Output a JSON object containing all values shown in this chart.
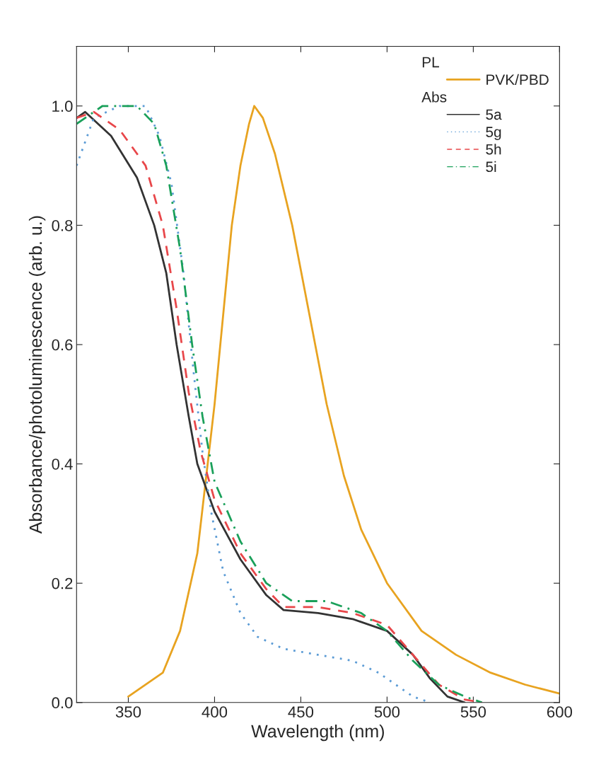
{
  "chart_data": {
    "type": "line",
    "xlabel": "Wavelength (nm)",
    "ylabel": "Absorbance/photoluminescence (arb. u.)",
    "xlim": [
      320,
      600
    ],
    "xticks": [
      350,
      400,
      450,
      500,
      550,
      600
    ],
    "ylim": [
      0,
      1.1
    ],
    "yticks": [
      {
        "value": 0,
        "label": "0.0"
      },
      {
        "value": 0.2,
        "label": "0.2"
      },
      {
        "value": 0.4,
        "label": "0.4"
      },
      {
        "value": 0.6,
        "label": "0.6"
      },
      {
        "value": 0.8,
        "label": "0.8"
      },
      {
        "value": 1.0,
        "label": "1.0"
      }
    ],
    "grid": false,
    "legend": "top right",
    "annotations": [
      "PL",
      "Abs"
    ],
    "series": [
      {
        "name": "PVK/PBD",
        "color": "#e8a320",
        "line_style": "solid",
        "x": [
          350,
          370,
          380,
          390,
          400,
          405,
          410,
          415,
          420,
          423,
          428,
          435,
          445,
          455,
          465,
          475,
          485,
          500,
          520,
          540,
          560,
          580,
          600
        ],
        "values": [
          0.01,
          0.05,
          0.12,
          0.25,
          0.5,
          0.65,
          0.8,
          0.9,
          0.97,
          1.0,
          0.98,
          0.92,
          0.8,
          0.65,
          0.5,
          0.38,
          0.29,
          0.2,
          0.12,
          0.08,
          0.05,
          0.03,
          0.015
        ]
      },
      {
        "name": "5a",
        "color": "#333333",
        "line_style": "solid",
        "x": [
          320,
          325,
          340,
          355,
          365,
          372,
          378,
          385,
          390,
          400,
          415,
          430,
          440,
          460,
          480,
          500,
          515,
          525,
          535,
          545
        ],
        "values": [
          0.98,
          0.99,
          0.95,
          0.88,
          0.8,
          0.72,
          0.6,
          0.48,
          0.4,
          0.32,
          0.24,
          0.18,
          0.155,
          0.15,
          0.14,
          0.12,
          0.08,
          0.04,
          0.01,
          0
        ]
      },
      {
        "name": "5g",
        "color": "#5b9bd5",
        "line_style": "dotted",
        "x": [
          320,
          330,
          345,
          360,
          368,
          375,
          382,
          388,
          393,
          398,
          405,
          415,
          425,
          440,
          460,
          480,
          495,
          505,
          515,
          525
        ],
        "values": [
          0.9,
          0.98,
          1.0,
          1.0,
          0.95,
          0.87,
          0.72,
          0.55,
          0.42,
          0.32,
          0.22,
          0.15,
          0.11,
          0.09,
          0.08,
          0.07,
          0.05,
          0.03,
          0.01,
          0
        ]
      },
      {
        "name": "5h",
        "color": "#e8474a",
        "line_style": "dashed",
        "x": [
          320,
          330,
          345,
          360,
          370,
          378,
          385,
          392,
          400,
          415,
          430,
          440,
          460,
          480,
          500,
          515,
          530,
          545,
          555
        ],
        "values": [
          0.98,
          0.99,
          0.96,
          0.9,
          0.8,
          0.66,
          0.52,
          0.42,
          0.34,
          0.25,
          0.19,
          0.16,
          0.16,
          0.15,
          0.13,
          0.08,
          0.03,
          0.005,
          0
        ]
      },
      {
        "name": "5i",
        "color": "#1aa05a",
        "line_style": "dashdot",
        "x": [
          320,
          335,
          355,
          365,
          372,
          380,
          387,
          393,
          400,
          415,
          430,
          445,
          465,
          485,
          500,
          515,
          530,
          545,
          555
        ],
        "values": [
          0.97,
          1.0,
          1.0,
          0.97,
          0.9,
          0.76,
          0.6,
          0.48,
          0.37,
          0.27,
          0.2,
          0.17,
          0.17,
          0.15,
          0.12,
          0.07,
          0.03,
          0.01,
          0
        ]
      }
    ]
  }
}
